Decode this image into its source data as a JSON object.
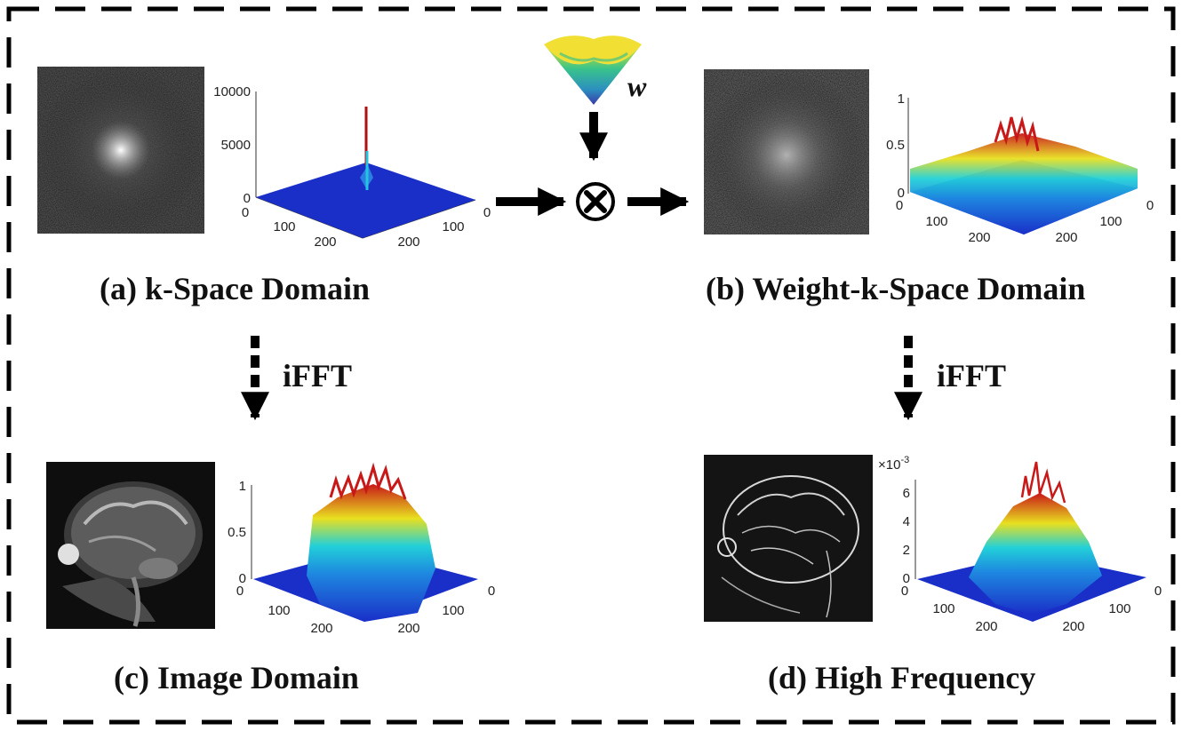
{
  "panels": {
    "a": {
      "caption": "(a) k-Space Domain",
      "z_ticks": [
        "10000",
        "5000",
        "0"
      ],
      "x_ticks": [
        "0",
        "100",
        "200"
      ],
      "y_ticks": [
        "0",
        "100",
        "200"
      ]
    },
    "b": {
      "caption": "(b) Weight-k-Space Domain",
      "z_ticks": [
        "1",
        "0.5",
        "0"
      ],
      "x_ticks": [
        "0",
        "100",
        "200"
      ],
      "y_ticks": [
        "0",
        "100",
        "200"
      ]
    },
    "c": {
      "caption": "(c) Image Domain",
      "z_ticks": [
        "1",
        "0.5",
        "0"
      ],
      "x_ticks": [
        "0",
        "100",
        "200"
      ],
      "y_ticks": [
        "0",
        "100",
        "200"
      ]
    },
    "d": {
      "caption": "(d) High Frequency",
      "z_ticks": [
        "6",
        "4",
        "2",
        "0"
      ],
      "x_ticks": [
        "0",
        "100",
        "200"
      ],
      "y_ticks": [
        "0",
        "100",
        "200"
      ],
      "z_multiplier": "×10",
      "z_exponent": "-3"
    }
  },
  "ifft_label_left": "iFFT",
  "ifft_label_right": "iFFT",
  "weight_symbol": "w",
  "multiply_symbol": "⊗",
  "colors": {
    "low": "#1a2fc8",
    "mid": "#22d0d8",
    "high_mid": "#e8e020",
    "peak": "#c81818"
  }
}
